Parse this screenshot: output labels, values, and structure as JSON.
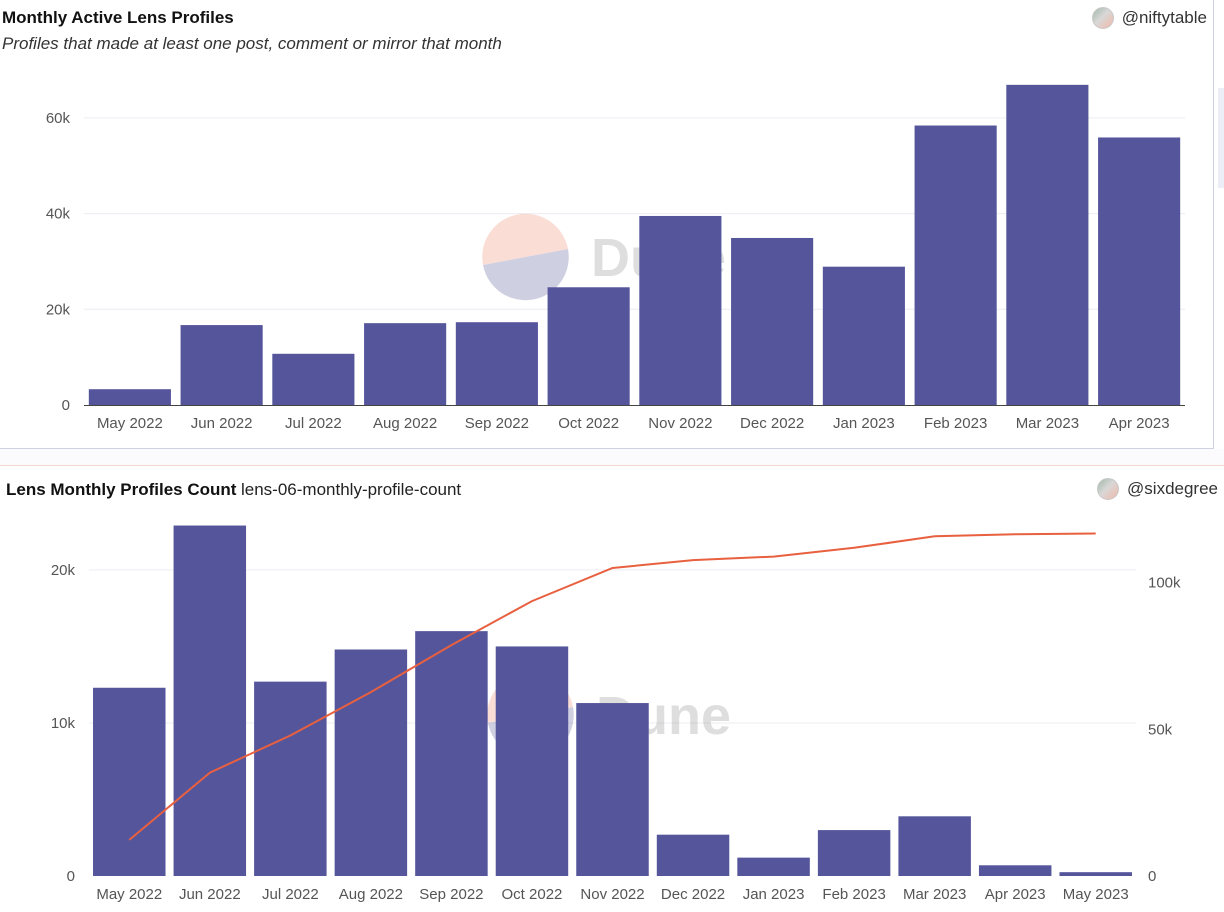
{
  "charts": {
    "monthly_active": {
      "title": "Monthly Active Lens Profiles",
      "subtitle": "Profiles that made at least one post, comment or mirror that month",
      "author": "@niftytable",
      "watermark": "Dune"
    },
    "profile_count": {
      "title": "Lens Monthly Profiles Count",
      "query_name": "lens-06-monthly-profile-count",
      "author": "@sixdegree",
      "watermark": "Dune"
    }
  },
  "colors": {
    "bar": "#55559b",
    "line": "#e8603f",
    "grid": "#ececf3",
    "axis_text": "#555555"
  },
  "chart_data": [
    {
      "type": "bar",
      "categories": [
        "May 2022",
        "Jun 2022",
        "Jul 2022",
        "Aug 2022",
        "Sep 2022",
        "Oct 2022",
        "Nov 2022",
        "Dec 2022",
        "Jan 2023",
        "Feb 2023",
        "Mar 2023",
        "Apr 2023"
      ],
      "values": [
        3300,
        16700,
        10700,
        17100,
        17300,
        24600,
        39500,
        34900,
        28900,
        58400,
        66900,
        55900
      ],
      "ylim": [
        0,
        70000
      ],
      "yticks": [
        0,
        20000,
        40000,
        60000
      ],
      "ytick_labels": [
        "0",
        "20k",
        "40k",
        "60k"
      ],
      "grid": true
    },
    {
      "type": "bar+line",
      "categories": [
        "May 2022",
        "Jun 2022",
        "Jul 2022",
        "Aug 2022",
        "Sep 2022",
        "Oct 2022",
        "Nov 2022",
        "Dec 2022",
        "Jan 2023",
        "Feb 2023",
        "Mar 2023",
        "Apr 2023",
        "May 2023"
      ],
      "series": [
        {
          "type": "bar",
          "axis": "left",
          "values": [
            12300,
            22900,
            12700,
            14800,
            16000,
            15000,
            11300,
            2700,
            1200,
            3000,
            3900,
            700,
            250
          ]
        },
        {
          "type": "line",
          "axis": "right",
          "values": [
            12300,
            35200,
            47900,
            62700,
            78700,
            93700,
            105000,
            107700,
            108900,
            111900,
            115800,
            116500,
            116750
          ]
        }
      ],
      "ylim_left": [
        0,
        23000
      ],
      "yticks_left": [
        0,
        10000,
        20000
      ],
      "ytick_labels_left": [
        "0",
        "10k",
        "20k"
      ],
      "ylim_right": [
        0,
        120000
      ],
      "yticks_right": [
        0,
        50000,
        100000
      ],
      "ytick_labels_right": [
        "0",
        "50k",
        "100k"
      ],
      "grid": true
    }
  ]
}
